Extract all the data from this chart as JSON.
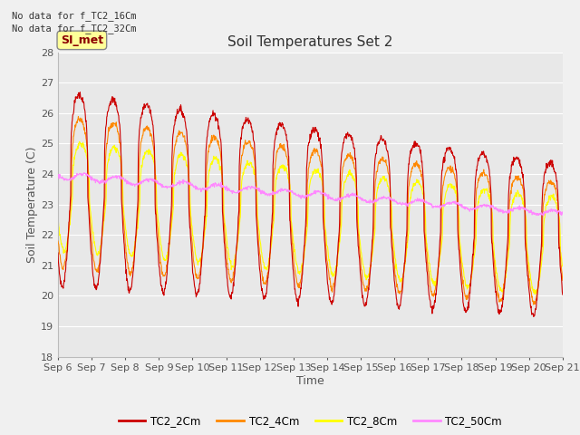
{
  "title": "Soil Temperatures Set 2",
  "xlabel": "Time",
  "ylabel": "Soil Temperature (C)",
  "ylim": [
    18.0,
    28.0
  ],
  "yticks": [
    18.0,
    19.0,
    20.0,
    21.0,
    22.0,
    23.0,
    24.0,
    25.0,
    26.0,
    27.0,
    28.0
  ],
  "x_labels": [
    "Sep 6",
    "Sep 7",
    "Sep 8",
    "Sep 9",
    "Sep 10",
    "Sep 11",
    "Sep 12",
    "Sep 13",
    "Sep 14",
    "Sep 15",
    "Sep 16",
    "Sep 17",
    "Sep 18",
    "Sep 19",
    "Sep 20",
    "Sep 21"
  ],
  "colors": {
    "TC2_2Cm": "#cc0000",
    "TC2_4Cm": "#ff8800",
    "TC2_8Cm": "#ffff00",
    "TC2_50Cm": "#ff88ff"
  },
  "legend_entries": [
    "TC2_2Cm",
    "TC2_4Cm",
    "TC2_8Cm",
    "TC2_50Cm"
  ],
  "no_data_text": [
    "No data for f_TC2_16Cm",
    "No data for f_TC2_32Cm"
  ],
  "si_met_label": "SI_met",
  "plot_bg_color": "#e8e8e8",
  "fig_bg_color": "#f0f0f0",
  "grid_color": "#ffffff",
  "title_fontsize": 11,
  "axis_label_fontsize": 9,
  "tick_fontsize": 8,
  "n_days": 15,
  "points_per_day": 96
}
